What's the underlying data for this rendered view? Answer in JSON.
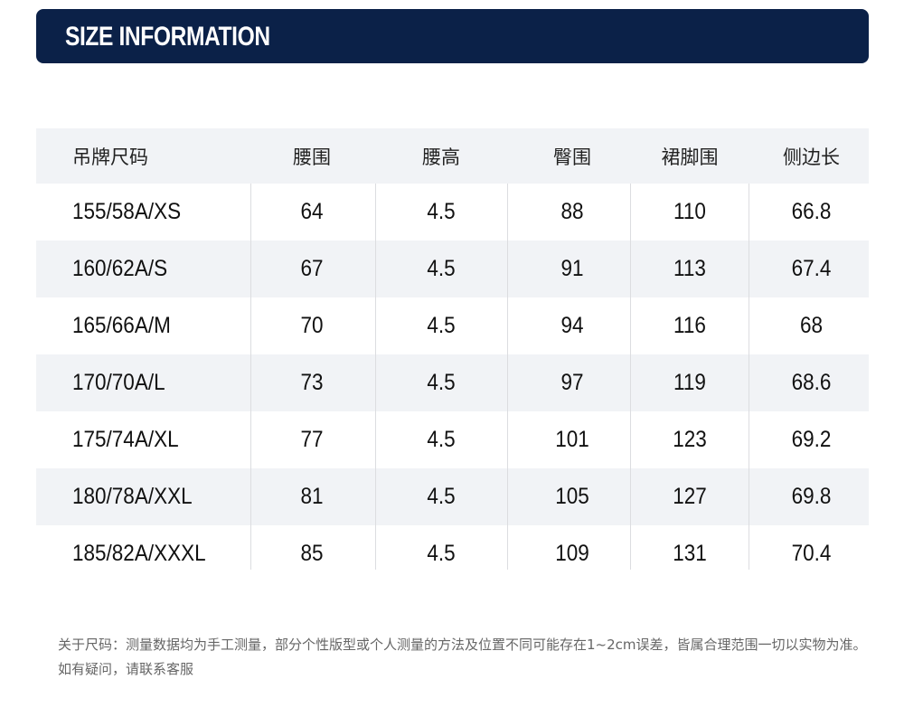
{
  "header": {
    "title": "SIZE INFORMATION",
    "background": "#0b2148"
  },
  "table": {
    "columns": [
      "吊牌尺码",
      "腰围",
      "腰高",
      "臀围",
      "裙脚围",
      "侧边长"
    ],
    "rows": [
      [
        "155/58A/XS",
        "64",
        "4.5",
        "88",
        "110",
        "66.8"
      ],
      [
        "160/62A/S",
        "67",
        "4.5",
        "91",
        "113",
        "67.4"
      ],
      [
        "165/66A/M",
        "70",
        "4.5",
        "94",
        "116",
        "68"
      ],
      [
        "170/70A/L",
        "73",
        "4.5",
        "97",
        "119",
        "68.6"
      ],
      [
        "175/74A/XL",
        "77",
        "4.5",
        "101",
        "123",
        "69.2"
      ],
      [
        "180/78A/XXL",
        "81",
        "4.5",
        "105",
        "127",
        "69.8"
      ],
      [
        "185/82A/XXXL",
        "85",
        "4.5",
        "109",
        "131",
        "70.4"
      ]
    ]
  },
  "note": "关于尺码：测量数据均为手工测量，部分个性版型或个人测量的方法及位置不同可能存在1~2cm误差，皆属合理范围一切以实物为准。如有疑问，请联系客服"
}
